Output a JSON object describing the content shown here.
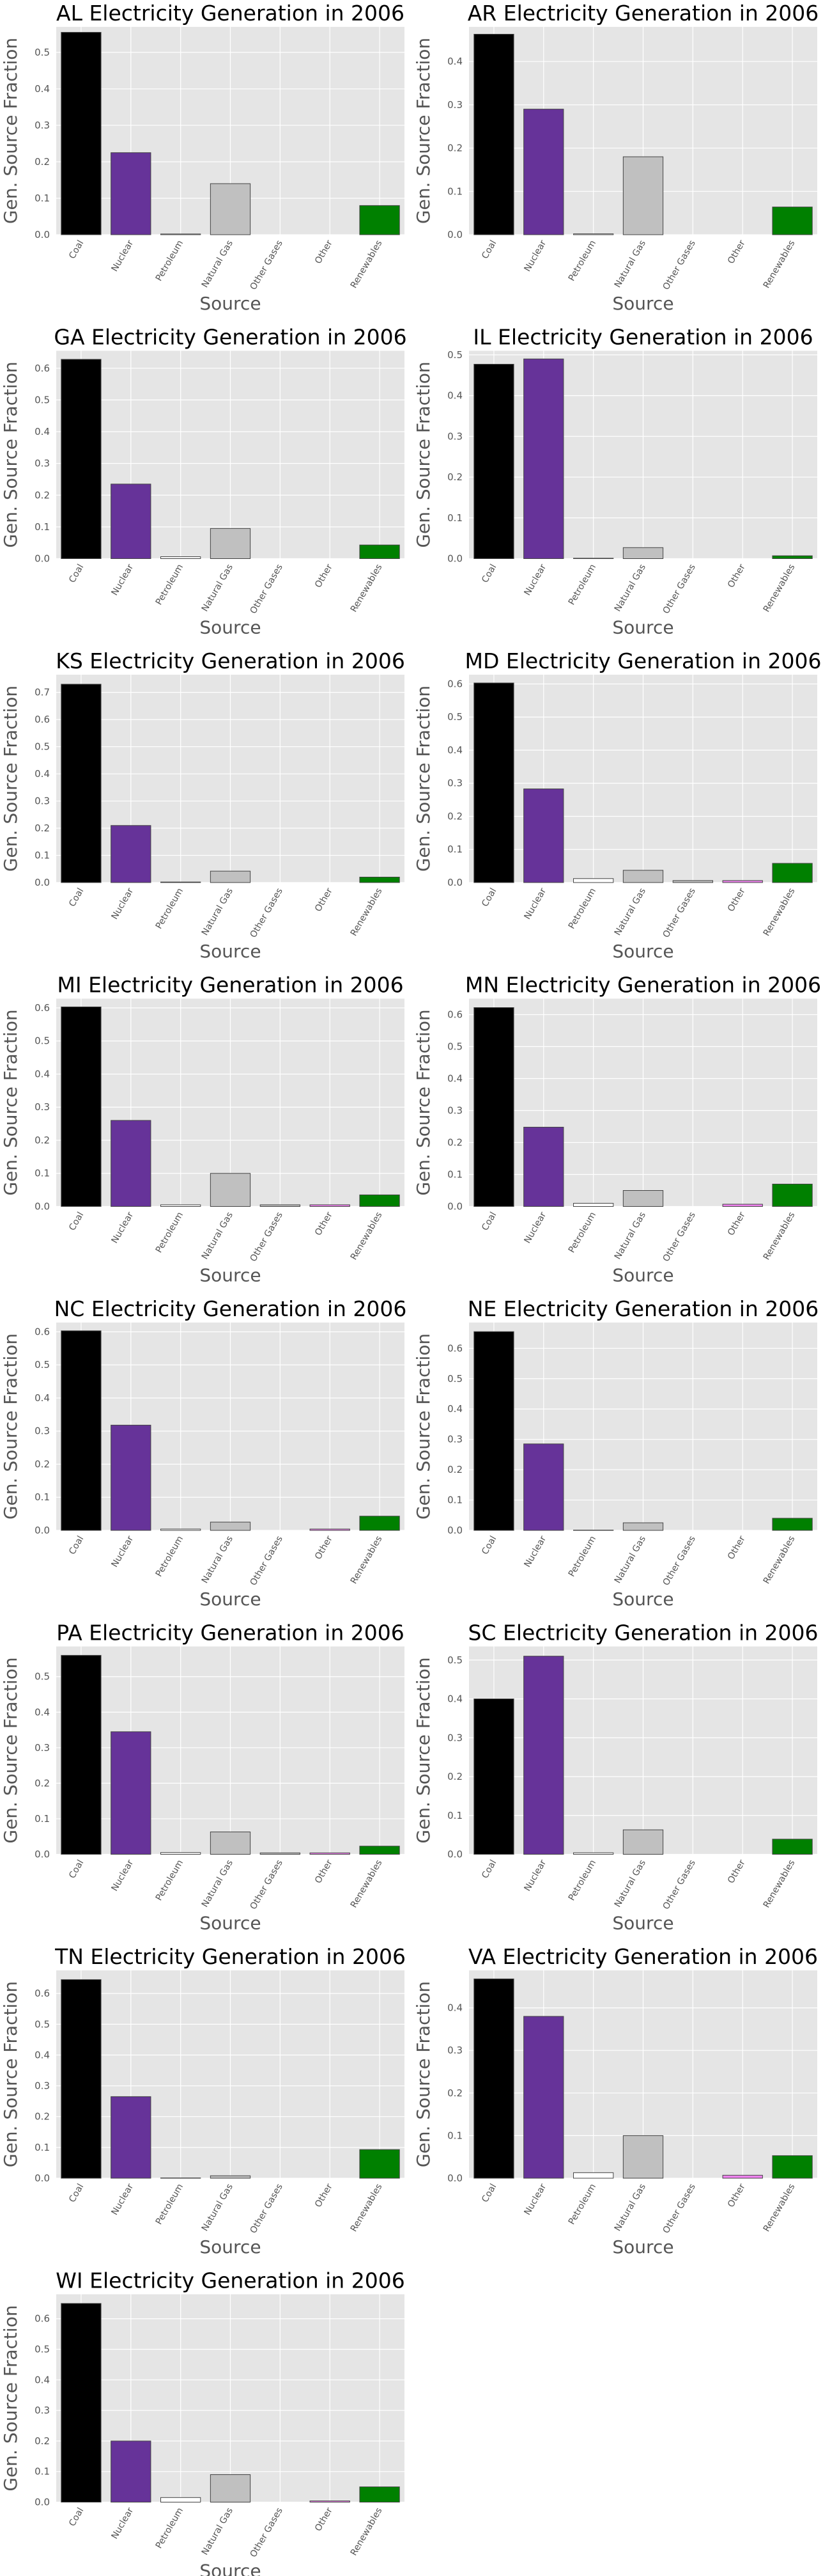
{
  "figure": {
    "ylabel": "Gen. Source Fraction",
    "xlabel": "Source",
    "categories": [
      "Coal",
      "Nuclear",
      "Petroleum",
      "Natural Gas",
      "Other Gases",
      "Other",
      "Renewables"
    ],
    "colors": {
      "Coal": "#000000",
      "Nuclear": "#663399",
      "Petroleum": "#ffffff",
      "Natural Gas": "#c0c0c0",
      "Other Gases": "#c0c0c0",
      "Other": "#ee82ee",
      "Renewables": "#008000",
      "background": "#e5e5e5",
      "grid": "#ffffff"
    },
    "grid": true
  },
  "chart_data": [
    {
      "type": "bar",
      "title": "AL Electricity Generation in 2006",
      "values": [
        0.555,
        0.225,
        0.002,
        0.14,
        0.0,
        0.0,
        0.08
      ],
      "ylim": [
        0,
        0.57
      ],
      "yticks": [
        0.0,
        0.1,
        0.2,
        0.3,
        0.4,
        0.5
      ]
    },
    {
      "type": "bar",
      "title": "AR Electricity Generation in 2006",
      "values": [
        0.463,
        0.29,
        0.002,
        0.18,
        0.0,
        0.0,
        0.064
      ],
      "ylim": [
        0,
        0.48
      ],
      "yticks": [
        0.0,
        0.1,
        0.2,
        0.3,
        0.4
      ]
    },
    {
      "type": "bar",
      "title": "GA Electricity Generation in 2006",
      "values": [
        0.628,
        0.235,
        0.006,
        0.095,
        0.0,
        0.0,
        0.043
      ],
      "ylim": [
        0,
        0.655
      ],
      "yticks": [
        0.0,
        0.1,
        0.2,
        0.3,
        0.4,
        0.5,
        0.6
      ]
    },
    {
      "type": "bar",
      "title": "IL Electricity Generation in 2006",
      "values": [
        0.477,
        0.49,
        0.001,
        0.027,
        0.0,
        0.0,
        0.007
      ],
      "ylim": [
        0,
        0.51
      ],
      "yticks": [
        0.0,
        0.1,
        0.2,
        0.3,
        0.4,
        0.5
      ]
    },
    {
      "type": "bar",
      "title": "KS Electricity Generation in 2006",
      "values": [
        0.73,
        0.21,
        0.002,
        0.042,
        0.0,
        0.0,
        0.02
      ],
      "ylim": [
        0,
        0.765
      ],
      "yticks": [
        0.0,
        0.1,
        0.2,
        0.3,
        0.4,
        0.5,
        0.6,
        0.7
      ]
    },
    {
      "type": "bar",
      "title": "MD Electricity Generation in 2006",
      "values": [
        0.603,
        0.283,
        0.012,
        0.037,
        0.006,
        0.006,
        0.058
      ],
      "ylim": [
        0,
        0.628
      ],
      "yticks": [
        0.0,
        0.1,
        0.2,
        0.3,
        0.4,
        0.5,
        0.6
      ]
    },
    {
      "type": "bar",
      "title": "MI Electricity Generation in 2006",
      "values": [
        0.603,
        0.26,
        0.005,
        0.1,
        0.005,
        0.005,
        0.035
      ],
      "ylim": [
        0,
        0.628
      ],
      "yticks": [
        0.0,
        0.1,
        0.2,
        0.3,
        0.4,
        0.5,
        0.6
      ]
    },
    {
      "type": "bar",
      "title": "MN Electricity Generation in 2006",
      "values": [
        0.622,
        0.248,
        0.01,
        0.05,
        0.0,
        0.007,
        0.07
      ],
      "ylim": [
        0,
        0.65
      ],
      "yticks": [
        0.0,
        0.1,
        0.2,
        0.3,
        0.4,
        0.5,
        0.6
      ]
    },
    {
      "type": "bar",
      "title": "NC Electricity Generation in 2006",
      "values": [
        0.603,
        0.318,
        0.004,
        0.025,
        0.0,
        0.004,
        0.043
      ],
      "ylim": [
        0,
        0.628
      ],
      "yticks": [
        0.0,
        0.1,
        0.2,
        0.3,
        0.4,
        0.5,
        0.6
      ]
    },
    {
      "type": "bar",
      "title": "NE Electricity Generation in 2006",
      "values": [
        0.655,
        0.285,
        0.001,
        0.025,
        0.0,
        0.0,
        0.04
      ],
      "ylim": [
        0,
        0.685
      ],
      "yticks": [
        0.0,
        0.1,
        0.2,
        0.3,
        0.4,
        0.5,
        0.6
      ]
    },
    {
      "type": "bar",
      "title": "PA Electricity Generation in 2006",
      "values": [
        0.56,
        0.345,
        0.005,
        0.063,
        0.004,
        0.004,
        0.023
      ],
      "ylim": [
        0,
        0.585
      ],
      "yticks": [
        0.0,
        0.1,
        0.2,
        0.3,
        0.4,
        0.5
      ]
    },
    {
      "type": "bar",
      "title": "SC Electricity Generation in 2006",
      "values": [
        0.4,
        0.51,
        0.004,
        0.063,
        0.0,
        0.0,
        0.039
      ],
      "ylim": [
        0,
        0.535
      ],
      "yticks": [
        0.0,
        0.1,
        0.2,
        0.3,
        0.4,
        0.5
      ]
    },
    {
      "type": "bar",
      "title": "TN Electricity Generation in 2006",
      "values": [
        0.645,
        0.265,
        0.001,
        0.008,
        0.0,
        0.0,
        0.093
      ],
      "ylim": [
        0,
        0.675
      ],
      "yticks": [
        0.0,
        0.1,
        0.2,
        0.3,
        0.4,
        0.5,
        0.6
      ]
    },
    {
      "type": "bar",
      "title": "VA Electricity Generation in 2006",
      "values": [
        0.468,
        0.38,
        0.013,
        0.1,
        0.0,
        0.007,
        0.053
      ],
      "ylim": [
        0,
        0.488
      ],
      "yticks": [
        0.0,
        0.1,
        0.2,
        0.3,
        0.4
      ]
    },
    {
      "type": "bar",
      "title": "WI Electricity Generation in 2006",
      "values": [
        0.65,
        0.2,
        0.015,
        0.09,
        0.0,
        0.004,
        0.05
      ],
      "ylim": [
        0,
        0.68
      ],
      "yticks": [
        0.0,
        0.1,
        0.2,
        0.3,
        0.4,
        0.5,
        0.6
      ]
    }
  ]
}
